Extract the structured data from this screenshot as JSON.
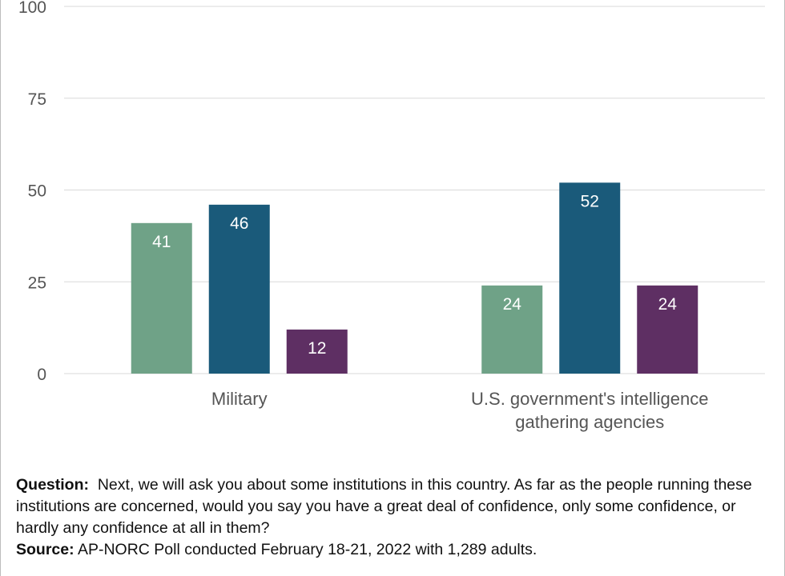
{
  "chart_data": {
    "type": "bar",
    "categories": [
      "Military",
      "U.S. government's intelligence gathering agencies"
    ],
    "series": [
      {
        "values": [
          41,
          24
        ],
        "color": "#6fa287"
      },
      {
        "values": [
          46,
          52
        ],
        "color": "#1a5a7a"
      },
      {
        "values": [
          12,
          24
        ],
        "color": "#5e2f63"
      }
    ],
    "yticks": [
      0,
      25,
      50,
      75,
      100
    ],
    "ylim": [
      0,
      100
    ],
    "grid": true,
    "title": "",
    "xlabel": "",
    "ylabel": ""
  },
  "notes": {
    "question_label": "Question:",
    "question_text": "Next, we will ask you about some institutions in this country. As far as the people running these institutions are concerned, would you say you have a great deal of confidence, only some confidence, or hardly any confidence at all in them?",
    "source_label": "Source:",
    "source_text": "AP-NORC Poll conducted February 18-21, 2022 with 1,289 adults."
  }
}
